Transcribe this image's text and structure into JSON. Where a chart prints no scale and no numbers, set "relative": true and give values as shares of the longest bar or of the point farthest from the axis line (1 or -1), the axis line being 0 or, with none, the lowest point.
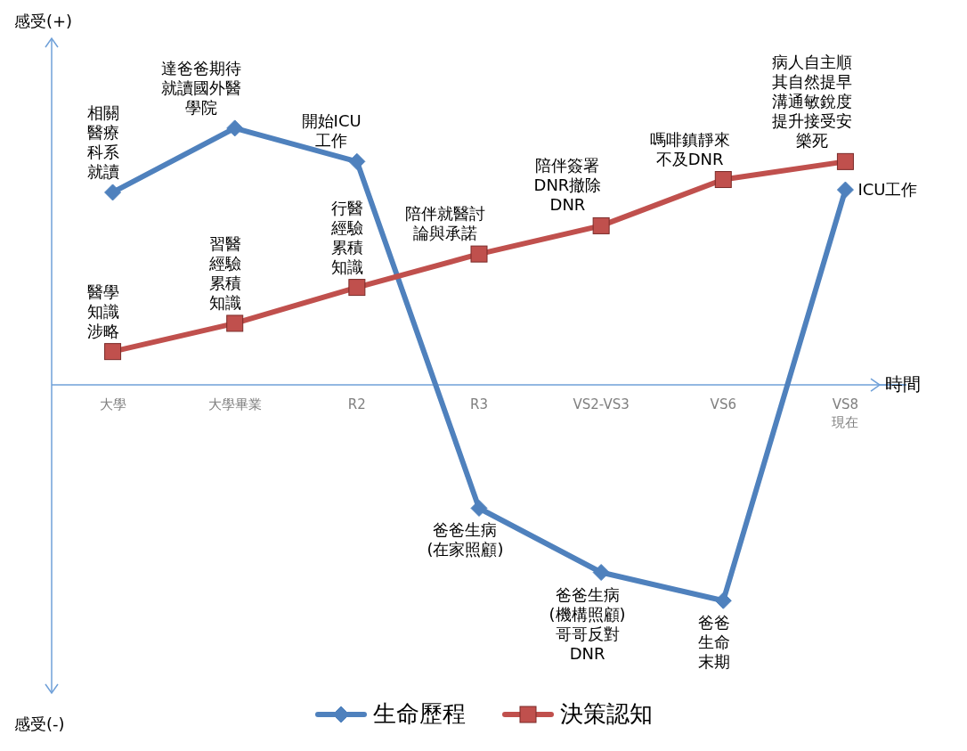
{
  "chart_data": {
    "type": "line",
    "relative": true,
    "xlabel": "時間",
    "legend": "bottom",
    "categories": [
      "大學",
      "大學畢業",
      "R2",
      "R3",
      "VS2-VS3",
      "VS6",
      "VS8 現在"
    ],
    "series": [
      {
        "name": "生命歷程",
        "color": "#4f81bd",
        "marker": "diamond",
        "values": [
          0.75,
          1,
          0.87,
          -0.48,
          -0.73,
          -0.84,
          0.76
        ]
      },
      {
        "name": "決策認知",
        "color": "#c0504d",
        "marker": "square",
        "values": [
          0.13,
          0.24,
          0.38,
          0.51,
          0.62,
          0.8,
          0.87
        ]
      }
    ],
    "annotations": [
      {
        "text": "相關醫療科系就讀",
        "x": "大學",
        "y": 0.75
      },
      {
        "text": "達爸爸期待就讀國外醫學院",
        "x": "大學畢業",
        "y": 1
      },
      {
        "text": "開始ICU工作",
        "x": "R2",
        "y": 0.87
      },
      {
        "text": "爸爸生病(在家照顧)",
        "x": "R3",
        "y": -0.48
      },
      {
        "text": "爸爸生病(機構照顧)哥哥反對DNR",
        "x": "VS2-VS3",
        "y": -0.73
      },
      {
        "text": "爸爸生命末期",
        "x": "VS6",
        "y": -0.84
      },
      {
        "text": "ICU工作",
        "x": "VS8 現在",
        "y": 0.76
      },
      {
        "text": "醫學知識涉略",
        "x": "大學",
        "y": 0.13
      },
      {
        "text": "習醫經驗累積知識",
        "x": "大學畢業",
        "y": 0.24
      },
      {
        "text": "行醫經驗累積知識",
        "x": "R2",
        "y": 0.38
      },
      {
        "text": "陪伴就醫討論與承諾",
        "x": "R3",
        "y": 0.51
      },
      {
        "text": "陪伴簽署DNR撤除DNR",
        "x": "VS2-VS3",
        "y": 0.62
      },
      {
        "text": "嗎啡鎮靜來不及DNR",
        "x": "VS6",
        "y": 0.8
      },
      {
        "text": "病人自主順其自然提早溝通敏銳度提升接受安樂死",
        "x": "VS8 現在",
        "y": 0.87
      },
      "感受(+)",
      "感受(-)"
    ]
  }
}
